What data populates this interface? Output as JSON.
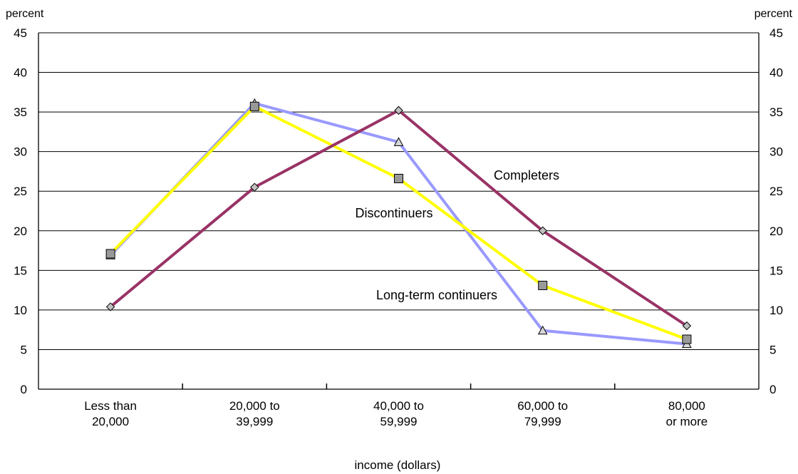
{
  "chart_data": {
    "type": "line",
    "title": "",
    "y_unit_left": "percent",
    "y_unit_right": "percent",
    "xlabel": "income (dollars)",
    "ylabel": "",
    "ylim": [
      0,
      45
    ],
    "yticks": [
      0,
      5,
      10,
      15,
      20,
      25,
      30,
      35,
      40,
      45
    ],
    "grid": true,
    "categories": [
      [
        "Less than",
        "20,000"
      ],
      [
        "20,000 to",
        "39,999"
      ],
      [
        "40,000 to",
        "59,999"
      ],
      [
        "60,000 to",
        "79,999"
      ],
      [
        "80,000",
        "or more"
      ]
    ],
    "series": [
      {
        "name": "Long-term continuers",
        "color": "#9999ff",
        "marker": "triangle",
        "values": [
          16.9,
          36.1,
          31.2,
          7.4,
          5.7
        ]
      },
      {
        "name": "Discontinuers",
        "color": "#ffff00",
        "marker": "square",
        "values": [
          17.1,
          35.7,
          26.6,
          13.1,
          6.3
        ]
      },
      {
        "name": "Completers",
        "color": "#993366",
        "marker": "diamond",
        "values": [
          10.4,
          25.5,
          35.2,
          20.0,
          8.0
        ]
      }
    ],
    "annotations": [
      {
        "text": "Completers",
        "series": "Completers"
      },
      {
        "text": "Discontinuers",
        "series": "Discontinuers"
      },
      {
        "text": "Long-term continuers",
        "series": "Long-term continuers"
      }
    ]
  }
}
